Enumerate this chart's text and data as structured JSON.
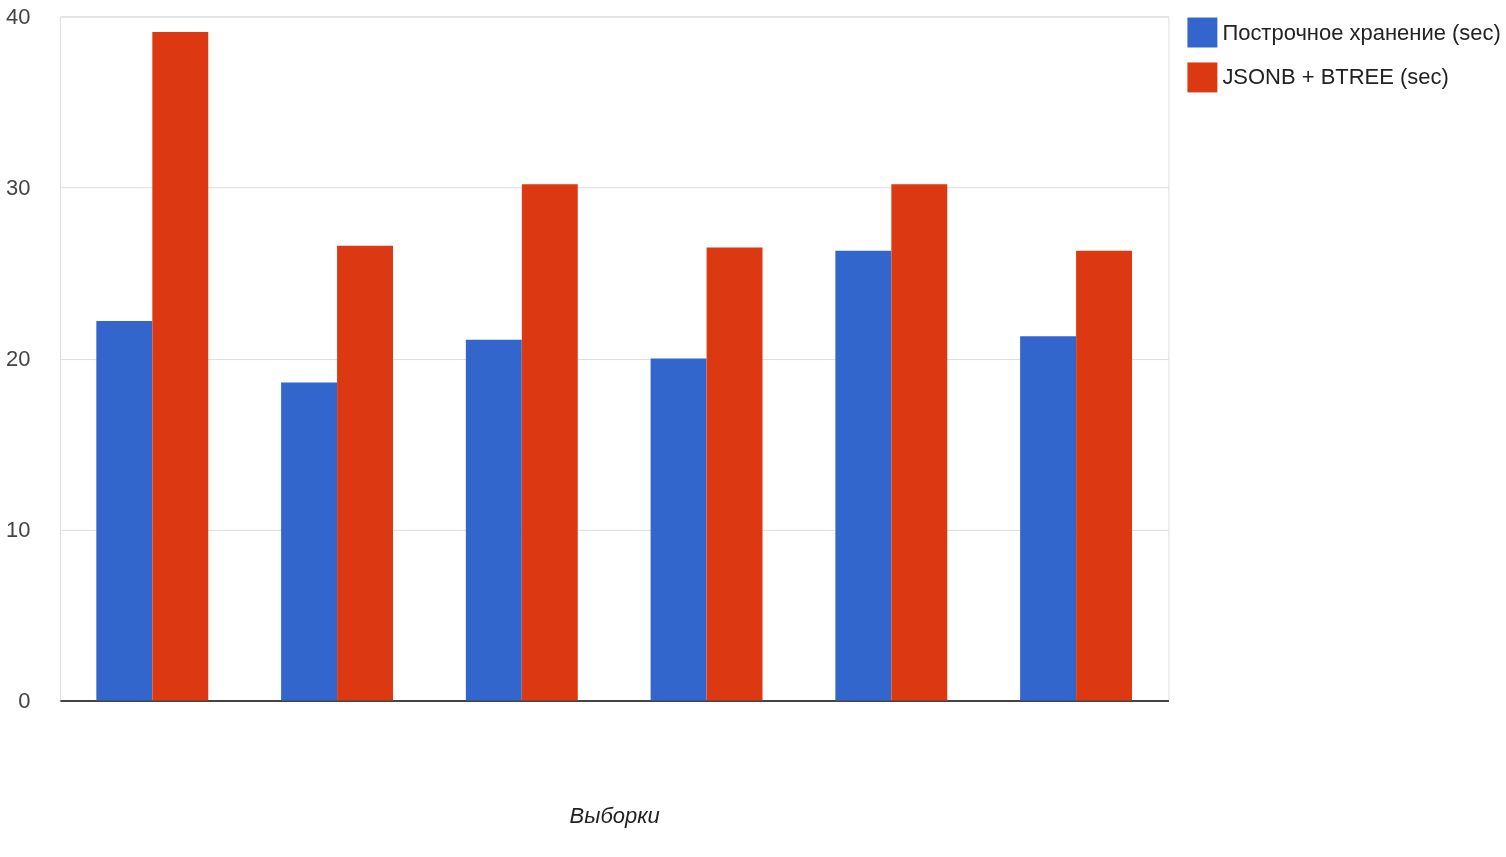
{
  "chart_data": {
    "type": "bar",
    "xlabel": "Выборки",
    "categories": [
      null,
      null,
      null,
      null,
      null,
      null
    ],
    "series": [
      {
        "name": "Построчное хранение (sec)",
        "color": "#3366cc",
        "values": [
          22.2,
          18.6,
          21.1,
          20.0,
          26.3,
          21.3
        ]
      },
      {
        "name": "JSONB + BTREE (sec)",
        "color": "#dc3912",
        "values": [
          39.1,
          26.6,
          30.2,
          26.5,
          30.2,
          26.3
        ]
      }
    ],
    "ylim": [
      0,
      40
    ],
    "yticks": [
      0,
      10,
      20,
      30,
      40
    ],
    "grid": "y",
    "legend": "top right",
    "tick_labels": "y"
  }
}
